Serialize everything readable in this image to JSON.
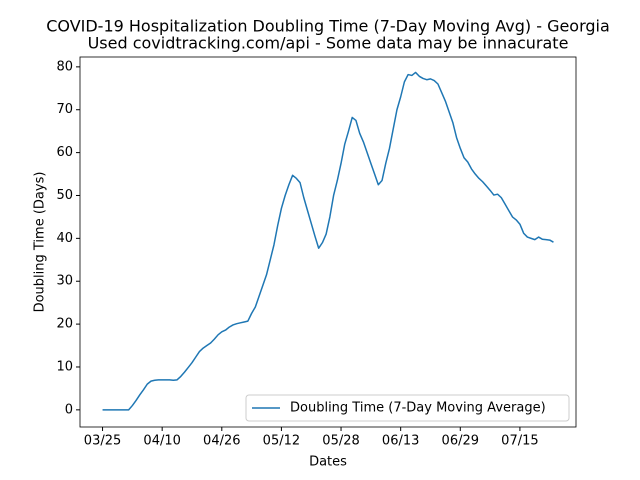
{
  "chart_data": {
    "type": "line",
    "title": "COVID-19 Hospitalization Doubling Time (7-Day Moving Avg) - Georgia",
    "subtitle": "Used covidtracking.com/api - Some data may be innacurate",
    "x_label": "Dates",
    "y_label": "Doubling Time (Days)",
    "categories": [
      "03/25",
      null,
      null,
      null,
      null,
      null,
      null,
      null,
      null,
      null,
      null,
      null,
      null,
      null,
      null,
      null,
      "04/10",
      null,
      null,
      null,
      null,
      null,
      null,
      null,
      null,
      null,
      null,
      null,
      null,
      null,
      null,
      null,
      "04/26",
      null,
      null,
      null,
      null,
      null,
      null,
      null,
      null,
      null,
      null,
      null,
      null,
      null,
      null,
      null,
      "05/12",
      null,
      null,
      null,
      null,
      null,
      null,
      null,
      null,
      null,
      null,
      null,
      null,
      null,
      null,
      null,
      "05/28",
      null,
      null,
      null,
      null,
      null,
      null,
      null,
      null,
      null,
      null,
      null,
      null,
      null,
      null,
      null,
      "06/13",
      null,
      null,
      null,
      null,
      null,
      null,
      null,
      null,
      null,
      null,
      null,
      null,
      null,
      null,
      null,
      "06/29",
      null,
      null,
      null,
      null,
      null,
      null,
      null,
      null,
      null,
      null,
      null,
      null,
      null,
      null,
      null,
      "07/15",
      null,
      null,
      null,
      null,
      null,
      null,
      null,
      null,
      null
    ],
    "series": [
      {
        "name": "Doubling Time (7-Day Moving Average)",
        "color": "#1f77b4",
        "values": [
          0,
          0,
          0,
          0,
          0,
          0,
          0,
          0,
          1,
          2.2,
          3.5,
          4.7,
          6,
          6.7,
          6.9,
          7,
          7,
          7,
          7,
          6.9,
          7,
          7.8,
          8.8,
          9.9,
          11,
          12.3,
          13.6,
          14.4,
          15,
          15.6,
          16.5,
          17.5,
          18.2,
          18.6,
          19.3,
          19.8,
          20.1,
          20.3,
          20.5,
          20.7,
          22.5,
          24,
          26.5,
          29,
          31.5,
          35,
          38.5,
          43,
          47,
          50,
          52.5,
          54.7,
          54,
          53,
          49.5,
          46.5,
          43.5,
          40.5,
          37.7,
          39,
          41,
          45,
          50,
          53.5,
          57.5,
          62,
          65,
          68.2,
          67.5,
          64.5,
          62.5,
          60,
          57.5,
          55,
          52.5,
          53.5,
          57.5,
          61,
          65.5,
          70,
          73,
          76.5,
          78.2,
          78,
          78.7,
          77.8,
          77.3,
          77,
          77.2,
          76.8,
          76,
          74,
          72,
          69.5,
          67,
          63.5,
          61,
          58.8,
          57.8,
          56.2,
          55,
          54,
          53.2,
          52.2,
          51.2,
          50.1,
          50.3,
          49.5,
          48,
          46.5,
          45,
          44.3,
          43.3,
          41.2,
          40.3,
          40,
          39.7,
          40.3,
          39.8,
          39.7,
          39.6,
          39.1
        ]
      }
    ],
    "ylim": [
      -4,
      82.3
    ],
    "yticks": [
      0,
      10,
      20,
      30,
      40,
      50,
      60,
      70,
      80
    ],
    "legend": "lower right",
    "grid": false
  }
}
